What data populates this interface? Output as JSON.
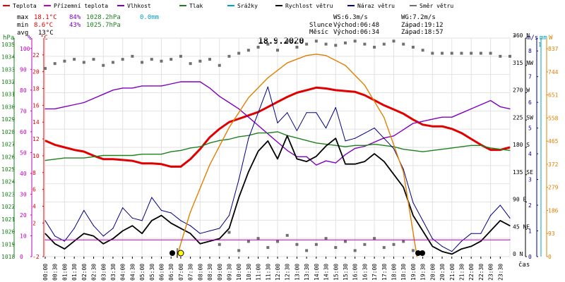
{
  "chart_data": {
    "type": "line",
    "title": "18.9.2020",
    "legend": [
      {
        "name": "Teplota",
        "color": "#e00000"
      },
      {
        "name": "Přízemní teplota",
        "color": "#c000c0"
      },
      {
        "name": "Vlhkost",
        "color": "#8000c0"
      },
      {
        "name": "Tlak",
        "color": "#208020"
      },
      {
        "name": "Srážky",
        "color": "#00a0c0"
      },
      {
        "name": "Rychlost větru",
        "color": "#000000"
      },
      {
        "name": "Náraz větru",
        "color": "#000080"
      },
      {
        "name": "Směr větru",
        "color": "#707070"
      }
    ],
    "stats": {
      "max": {
        "label": "max",
        "temp": "18.1°C",
        "hum": "84%",
        "press": "1028.2hPa",
        "rain": "0.0mm"
      },
      "min": {
        "label": "min",
        "temp": "8.6°C",
        "hum": "43%",
        "press": "1025.7hPa"
      },
      "avg": {
        "label": "avg",
        "temp": "13°C"
      }
    },
    "info": {
      "ws": "WS:6.3m/s",
      "wg": "WG:7.2m/s",
      "sun_label": "Slunce",
      "sunrise": "Východ:06:48",
      "sunset": "Západ:19:12",
      "moon_label": "Měsíc",
      "moonrise": "Východ:06:34",
      "moonset": "Západ:18:57"
    },
    "x_axis": {
      "label": "čas",
      "range_hours": [
        0,
        24
      ],
      "ticks": [
        "00:00",
        "00:30",
        "01:00",
        "01:30",
        "02:00",
        "02:30",
        "03:00",
        "03:30",
        "04:00",
        "04:30",
        "05:00",
        "05:30",
        "06:00",
        "06:30",
        "07:00",
        "07:30",
        "08:00",
        "08:30",
        "09:00",
        "09:30",
        "10:00",
        "10:30",
        "11:00",
        "11:30",
        "12:00",
        "12:30",
        "13:00",
        "13:30",
        "14:00",
        "14:30",
        "15:00",
        "15:30",
        "16:00",
        "16:30",
        "17:00",
        "17:30",
        "18:00",
        "18:30",
        "19:00",
        "19:30",
        "20:00",
        "20:30",
        "21:00",
        "21:30",
        "22:00",
        "22:30",
        "23:00",
        "23:30"
      ]
    },
    "axes": {
      "hpa": {
        "unit": "hPa",
        "ticks": [
          "1018",
          "1019",
          "1020",
          "1021",
          "1022",
          "1023",
          "1024",
          "1025",
          "1026",
          "1027",
          "1028",
          "1029",
          "1030",
          "1031",
          "1032",
          "1033",
          "1034",
          "1035"
        ],
        "range": [
          1018,
          1035.5
        ]
      },
      "pct": {
        "unit": "%",
        "ticks": [
          "0",
          "10",
          "20",
          "30",
          "40",
          "50",
          "60",
          "70",
          "80",
          "90",
          "100"
        ],
        "range": [
          0,
          105
        ]
      },
      "temp": {
        "unit": "°C",
        "ticks": [
          "-2",
          "2",
          "4",
          "6",
          "8",
          "10",
          "12",
          "14",
          "16",
          "18",
          "20",
          "22"
        ],
        "range": [
          -2,
          24
        ]
      },
      "dir": {
        "unit": "°",
        "ticks": [
          "0 N",
          "45 NE",
          "90 E",
          "135 SE",
          "180 S",
          "225 SW",
          "270 W",
          "315 NW",
          "360 N"
        ],
        "range": [
          0,
          360
        ]
      },
      "ms": {
        "unit": "m/s",
        "ticks": [
          "0",
          "1",
          "2",
          "3",
          "4",
          "5",
          "6",
          "7",
          "8"
        ],
        "range": [
          0,
          8.5
        ]
      },
      "mm": {
        "unit": "mm",
        "ticks": [
          "1"
        ]
      },
      "wm2": {
        "unit": "W",
        "ticks": [
          "0",
          "93",
          "186",
          "279",
          "372",
          "465",
          "558",
          "651",
          "744",
          "837"
        ],
        "range": [
          0,
          880
        ]
      }
    },
    "series": [
      {
        "name": "Teplota",
        "unit": "°C",
        "x": [
          0,
          0.5,
          1,
          1.5,
          2,
          2.5,
          3,
          3.5,
          4,
          4.5,
          5,
          5.5,
          6,
          6.5,
          7,
          7.5,
          8,
          8.5,
          9,
          9.5,
          10,
          10.5,
          11,
          11.5,
          12,
          12.5,
          13,
          13.5,
          14,
          14.5,
          15,
          15.5,
          16,
          16.5,
          17,
          17.5,
          18,
          18.5,
          19,
          19.5,
          20,
          20.5,
          21,
          21.5,
          22,
          22.5,
          23,
          23.5,
          24
        ],
        "y": [
          11.8,
          11.3,
          11,
          10.7,
          10.5,
          10,
          9.6,
          9.6,
          9.5,
          9.4,
          9.1,
          9.1,
          9,
          8.7,
          8.7,
          9.6,
          10.8,
          12.2,
          13.2,
          14,
          14.4,
          14.8,
          15.2,
          15.8,
          16.4,
          17,
          17.5,
          17.8,
          18.1,
          18,
          17.8,
          17.7,
          17.6,
          17.2,
          16.6,
          16,
          15.5,
          15,
          14.3,
          13.7,
          13.5,
          13.5,
          13.2,
          12.7,
          12,
          11.3,
          10.7,
          10.7,
          11
        ]
      },
      {
        "name": "Vlhkost",
        "unit": "%",
        "x": [
          0,
          0.5,
          1,
          1.5,
          2,
          2.5,
          3,
          3.5,
          4,
          4.5,
          5,
          5.5,
          6,
          6.5,
          7,
          7.5,
          8,
          8.5,
          9,
          9.5,
          10,
          10.5,
          11,
          11.5,
          12,
          12.5,
          13,
          13.5,
          14,
          14.5,
          15,
          15.5,
          16,
          16.5,
          17,
          17.5,
          18,
          18.5,
          19,
          19.5,
          20,
          20.5,
          21,
          21.5,
          22,
          22.5,
          23,
          23.5,
          24
        ],
        "y": [
          71,
          71,
          72,
          73,
          74,
          76,
          78,
          80,
          81,
          81,
          82,
          82,
          82,
          83,
          84,
          84,
          84,
          81,
          77,
          74,
          71,
          67,
          63,
          59,
          55,
          51,
          48,
          48,
          44,
          46,
          45,
          49,
          52,
          53,
          55,
          57,
          58,
          61,
          64,
          65,
          66,
          67,
          67,
          69,
          71,
          73,
          75,
          72,
          71
        ]
      },
      {
        "name": "Tlak",
        "unit": "hPa",
        "x": [
          0,
          0.5,
          1,
          1.5,
          2,
          2.5,
          3,
          3.5,
          4,
          4.5,
          5,
          5.5,
          6,
          6.5,
          7,
          7.5,
          8,
          8.5,
          9,
          9.5,
          10,
          10.5,
          11,
          11.5,
          12,
          12.5,
          13,
          13.5,
          14,
          14.5,
          15,
          15.5,
          16,
          16.5,
          17,
          17.5,
          18,
          18.5,
          19,
          19.5,
          20,
          20.5,
          21,
          21.5,
          22,
          22.5,
          23,
          23.5,
          24
        ],
        "y": [
          1025.7,
          1025.8,
          1025.9,
          1025.9,
          1025.9,
          1026,
          1026.1,
          1026.1,
          1026.1,
          1026.1,
          1026.2,
          1026.2,
          1026.2,
          1026.4,
          1026.5,
          1026.7,
          1026.8,
          1027.1,
          1027.3,
          1027.4,
          1027.6,
          1027.7,
          1027.9,
          1027.9,
          1028,
          1027.7,
          1027.5,
          1027.3,
          1027.1,
          1027,
          1026.9,
          1026.8,
          1026.9,
          1026.9,
          1027,
          1026.9,
          1026.8,
          1026.6,
          1026.5,
          1026.4,
          1026.5,
          1026.6,
          1026.7,
          1026.8,
          1026.9,
          1026.9,
          1026.7,
          1026.6,
          1026.5
        ]
      },
      {
        "name": "Rychlost větru",
        "unit": "m/s",
        "x": [
          0,
          0.5,
          1,
          1.5,
          2,
          2.5,
          3,
          3.5,
          4,
          4.5,
          5,
          5.5,
          6,
          6.5,
          7,
          7.5,
          8,
          8.5,
          9,
          9.5,
          10,
          10.5,
          11,
          11.5,
          12,
          12.5,
          13,
          13.5,
          14,
          14.5,
          15,
          15.5,
          16,
          16.5,
          17,
          17.5,
          18,
          18.5,
          19,
          19.5,
          20,
          20.5,
          21,
          21.5,
          22,
          22.5,
          23,
          23.5,
          24
        ],
        "y": [
          0.9,
          0.5,
          0.3,
          0.6,
          0.9,
          0.8,
          0.5,
          0.7,
          1,
          1.2,
          0.9,
          1.4,
          1.6,
          1.3,
          1.1,
          0.9,
          0.5,
          0.6,
          0.7,
          1.1,
          2.3,
          3.3,
          4.1,
          4.5,
          3.8,
          4.7,
          3.8,
          3.7,
          3.9,
          4.3,
          4.6,
          3.6,
          3.6,
          3.7,
          4,
          3.7,
          3.2,
          2.7,
          1.6,
          1,
          0.4,
          0.2,
          0.1,
          0.3,
          0.4,
          0.6,
          1,
          1.4,
          1.2
        ]
      },
      {
        "name": "Náraz větru",
        "unit": "m/s",
        "x": [
          0,
          0.5,
          1,
          1.5,
          2,
          2.5,
          3,
          3.5,
          4,
          4.5,
          5,
          5.5,
          6,
          6.5,
          7,
          7.5,
          8,
          8.5,
          9,
          9.5,
          10,
          10.5,
          11,
          11.5,
          12,
          12.5,
          13,
          13.5,
          14,
          14.5,
          15,
          15.5,
          16,
          16.5,
          17,
          17.5,
          18,
          18.5,
          19,
          19.5,
          20,
          20.5,
          21,
          21.5,
          22,
          22.5,
          23,
          23.5,
          24
        ],
        "y": [
          1.4,
          0.8,
          0.6,
          1.1,
          1.8,
          1.2,
          0.8,
          1.1,
          1.9,
          1.5,
          1.4,
          2.3,
          1.8,
          1.7,
          1.4,
          1.2,
          0.9,
          1,
          1.1,
          1.6,
          3,
          4.6,
          5.6,
          6.6,
          5.2,
          5.6,
          4.9,
          5.6,
          5.6,
          5,
          5.8,
          4.5,
          4.6,
          4.8,
          5,
          4.6,
          4.2,
          3.4,
          2.1,
          1.4,
          0.7,
          0.4,
          0.2,
          0.6,
          0.9,
          0.9,
          1.6,
          2,
          1.5
        ]
      },
      {
        "name": "Směr větru",
        "unit": "°",
        "x": [
          0,
          0.5,
          1,
          1.5,
          2,
          2.5,
          3,
          3.5,
          4,
          4.5,
          5,
          5.5,
          6,
          6.5,
          7,
          7.5,
          8,
          8.5,
          9,
          9.5,
          10,
          10.5,
          11,
          11.5,
          12,
          12.5,
          13,
          13.5,
          14,
          14.5,
          15,
          15.5,
          16,
          16.5,
          17,
          17.5,
          18,
          18.5,
          19,
          19.5,
          20,
          20.5,
          21,
          21.5,
          22,
          22.5,
          23,
          23.5,
          24
        ],
        "y": [
          310,
          318,
          322,
          325,
          320,
          325,
          315,
          320,
          325,
          330,
          320,
          325,
          322,
          325,
          330,
          318,
          322,
          325,
          315,
          330,
          335,
          340,
          345,
          350,
          340,
          355,
          345,
          350,
          355,
          350,
          348,
          352,
          355,
          350,
          345,
          350,
          355,
          350,
          345,
          340,
          335,
          335,
          335,
          335,
          335,
          335,
          335,
          330,
          330
        ],
        "style": "points"
      },
      {
        "name": "Směr větru (low)",
        "unit": "°",
        "x": [
          9,
          9.5,
          10,
          10.5,
          11,
          11.5,
          12,
          12.5,
          13,
          13.5,
          14,
          14.5,
          15,
          15.5,
          16,
          16.5,
          17,
          17.5,
          18,
          18.5,
          19,
          19.5
        ],
        "y": [
          20,
          40,
          10,
          25,
          30,
          15,
          25,
          35,
          20,
          10,
          20,
          30,
          15,
          25,
          10,
          20,
          30,
          15,
          20,
          25,
          10,
          5
        ],
        "style": "points"
      },
      {
        "name": "Sluneční záření",
        "unit": "W",
        "x": [
          6.8,
          7.5,
          8.5,
          9.5,
          10.5,
          11.5,
          12.5,
          13.5,
          14,
          14.5,
          15.5,
          16.5,
          17.5,
          18.5,
          19.2
        ],
        "y": [
          0,
          180,
          370,
          520,
          640,
          720,
          780,
          810,
          815,
          810,
          770,
          690,
          560,
          340,
          0
        ]
      },
      {
        "name": "Přízemní teplota",
        "unit": "°C",
        "x": [
          0,
          24
        ],
        "y": [
          0,
          0
        ]
      }
    ]
  }
}
